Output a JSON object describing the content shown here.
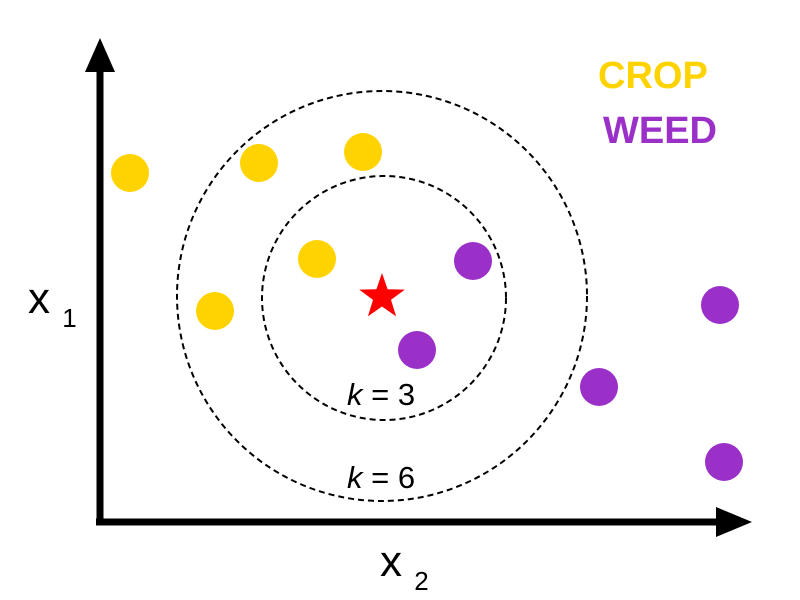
{
  "axes": {
    "y": {
      "main": "x",
      "sub": "1"
    },
    "x": {
      "main": "x",
      "sub": "2"
    }
  },
  "legend": [
    {
      "label": "CROP",
      "color": "#FFD300"
    },
    {
      "label": "WEED",
      "color": "#9B30C8"
    }
  ],
  "query_point": {
    "shape": "star",
    "color": "#FF0000"
  },
  "neighborhoods": [
    {
      "k_var": "k",
      "k_rest": " = 3"
    },
    {
      "k_var": "k",
      "k_rest": " = 6"
    }
  ],
  "points": [
    {
      "class": "CROP"
    },
    {
      "class": "CROP"
    },
    {
      "class": "CROP"
    },
    {
      "class": "CROP"
    },
    {
      "class": "CROP"
    },
    {
      "class": "WEED"
    },
    {
      "class": "WEED"
    },
    {
      "class": "WEED"
    },
    {
      "class": "WEED"
    },
    {
      "class": "WEED"
    }
  ]
}
